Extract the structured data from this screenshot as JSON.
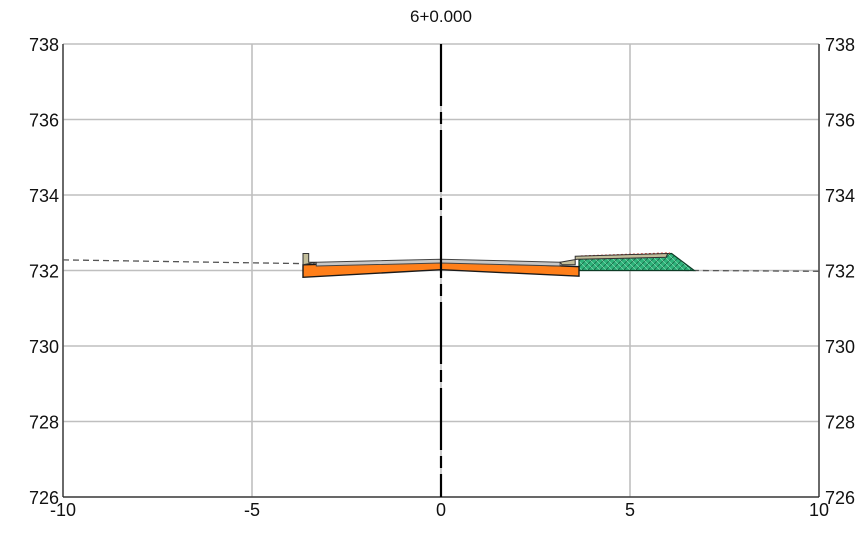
{
  "chart_data": {
    "type": "line",
    "title": "6+0.000",
    "xlabel": "",
    "ylabel": "",
    "xlim": [
      -10,
      10
    ],
    "ylim": [
      726,
      738
    ],
    "x_ticks": [
      -10,
      -5,
      0,
      5,
      10
    ],
    "y_ticks": [
      726,
      728,
      730,
      732,
      734,
      736,
      738
    ],
    "x_tick_labels": [
      "-10",
      "-5",
      "0",
      "5",
      "10"
    ],
    "y_tick_labels": [
      "726",
      "728",
      "730",
      "732",
      "734",
      "736",
      "738"
    ],
    "y_tick_labels_right": [
      "726",
      "728",
      "730",
      "732",
      "734",
      "736",
      "738"
    ],
    "grid": true,
    "centerline_x": 0,
    "existing_ground": [
      [
        -10,
        732.28
      ],
      [
        -3.5,
        732.18
      ],
      [
        0,
        732.1
      ],
      [
        3.5,
        732.05
      ],
      [
        6.7,
        732.0
      ],
      [
        10,
        731.98
      ]
    ],
    "road_top": [
      [
        -3.3,
        732.22
      ],
      [
        0,
        732.3
      ],
      [
        3.15,
        732.22
      ]
    ],
    "subbase": [
      [
        -3.65,
        732.15
      ],
      [
        0,
        732.25
      ],
      [
        3.65,
        732.1
      ],
      [
        3.65,
        731.85
      ],
      [
        0,
        732.02
      ],
      [
        -3.65,
        731.82
      ]
    ],
    "curb_left": [
      [
        -3.65,
        732.15
      ],
      [
        -3.65,
        732.45
      ],
      [
        -3.5,
        732.45
      ],
      [
        -3.5,
        732.22
      ],
      [
        -3.3,
        732.22
      ]
    ],
    "curb_right": [
      [
        3.15,
        732.22
      ],
      [
        3.2,
        732.15
      ],
      [
        3.55,
        732.15
      ],
      [
        3.55,
        732.38
      ],
      [
        6.0,
        732.45
      ],
      [
        5.95,
        732.35
      ],
      [
        3.6,
        732.3
      ]
    ],
    "fill_slope": [
      [
        3.65,
        732.35
      ],
      [
        6.1,
        732.45
      ],
      [
        6.7,
        732.0
      ],
      [
        3.65,
        732.0
      ]
    ],
    "colors": {
      "subbase": "#ff7f1a",
      "road": "#c8c8c8",
      "curb": "#c2bd9a",
      "fill": "#2db37a",
      "ground_line": "#555555",
      "grid": "#bfbfbf",
      "centerline": "#000000"
    }
  }
}
